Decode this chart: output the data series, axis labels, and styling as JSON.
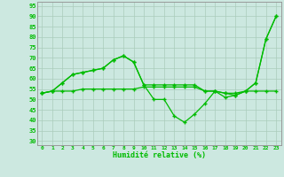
{
  "xlabel": "Humidité relative (%)",
  "bg_color": "#cce8e0",
  "grid_color": "#aaccbb",
  "line_color": "#00bb00",
  "marker": "+",
  "x": [
    0,
    1,
    2,
    3,
    4,
    5,
    6,
    7,
    8,
    9,
    10,
    11,
    12,
    13,
    14,
    15,
    16,
    17,
    18,
    19,
    20,
    21,
    22,
    23
  ],
  "line1": [
    53,
    54,
    58,
    62,
    63,
    64,
    65,
    69,
    71,
    68,
    57,
    57,
    57,
    57,
    57,
    57,
    54,
    54,
    53,
    53,
    54,
    58,
    79,
    90
  ],
  "line2": [
    53,
    54,
    58,
    62,
    63,
    64,
    65,
    69,
    71,
    68,
    57,
    50,
    50,
    42,
    39,
    43,
    48,
    54,
    51,
    52,
    54,
    58,
    79,
    90
  ],
  "line3": [
    53,
    54,
    54,
    54,
    55,
    55,
    55,
    55,
    55,
    55,
    56,
    56,
    56,
    56,
    56,
    56,
    54,
    54,
    53,
    52,
    54,
    54,
    54,
    54
  ],
  "ylim": [
    28,
    97
  ],
  "yticks": [
    30,
    35,
    40,
    45,
    50,
    55,
    60,
    65,
    70,
    75,
    80,
    85,
    90,
    95
  ],
  "xticks": [
    0,
    1,
    2,
    3,
    4,
    5,
    6,
    7,
    8,
    9,
    10,
    11,
    12,
    13,
    14,
    15,
    16,
    17,
    18,
    19,
    20,
    21,
    22,
    23
  ],
  "xlim": [
    -0.5,
    23.5
  ]
}
